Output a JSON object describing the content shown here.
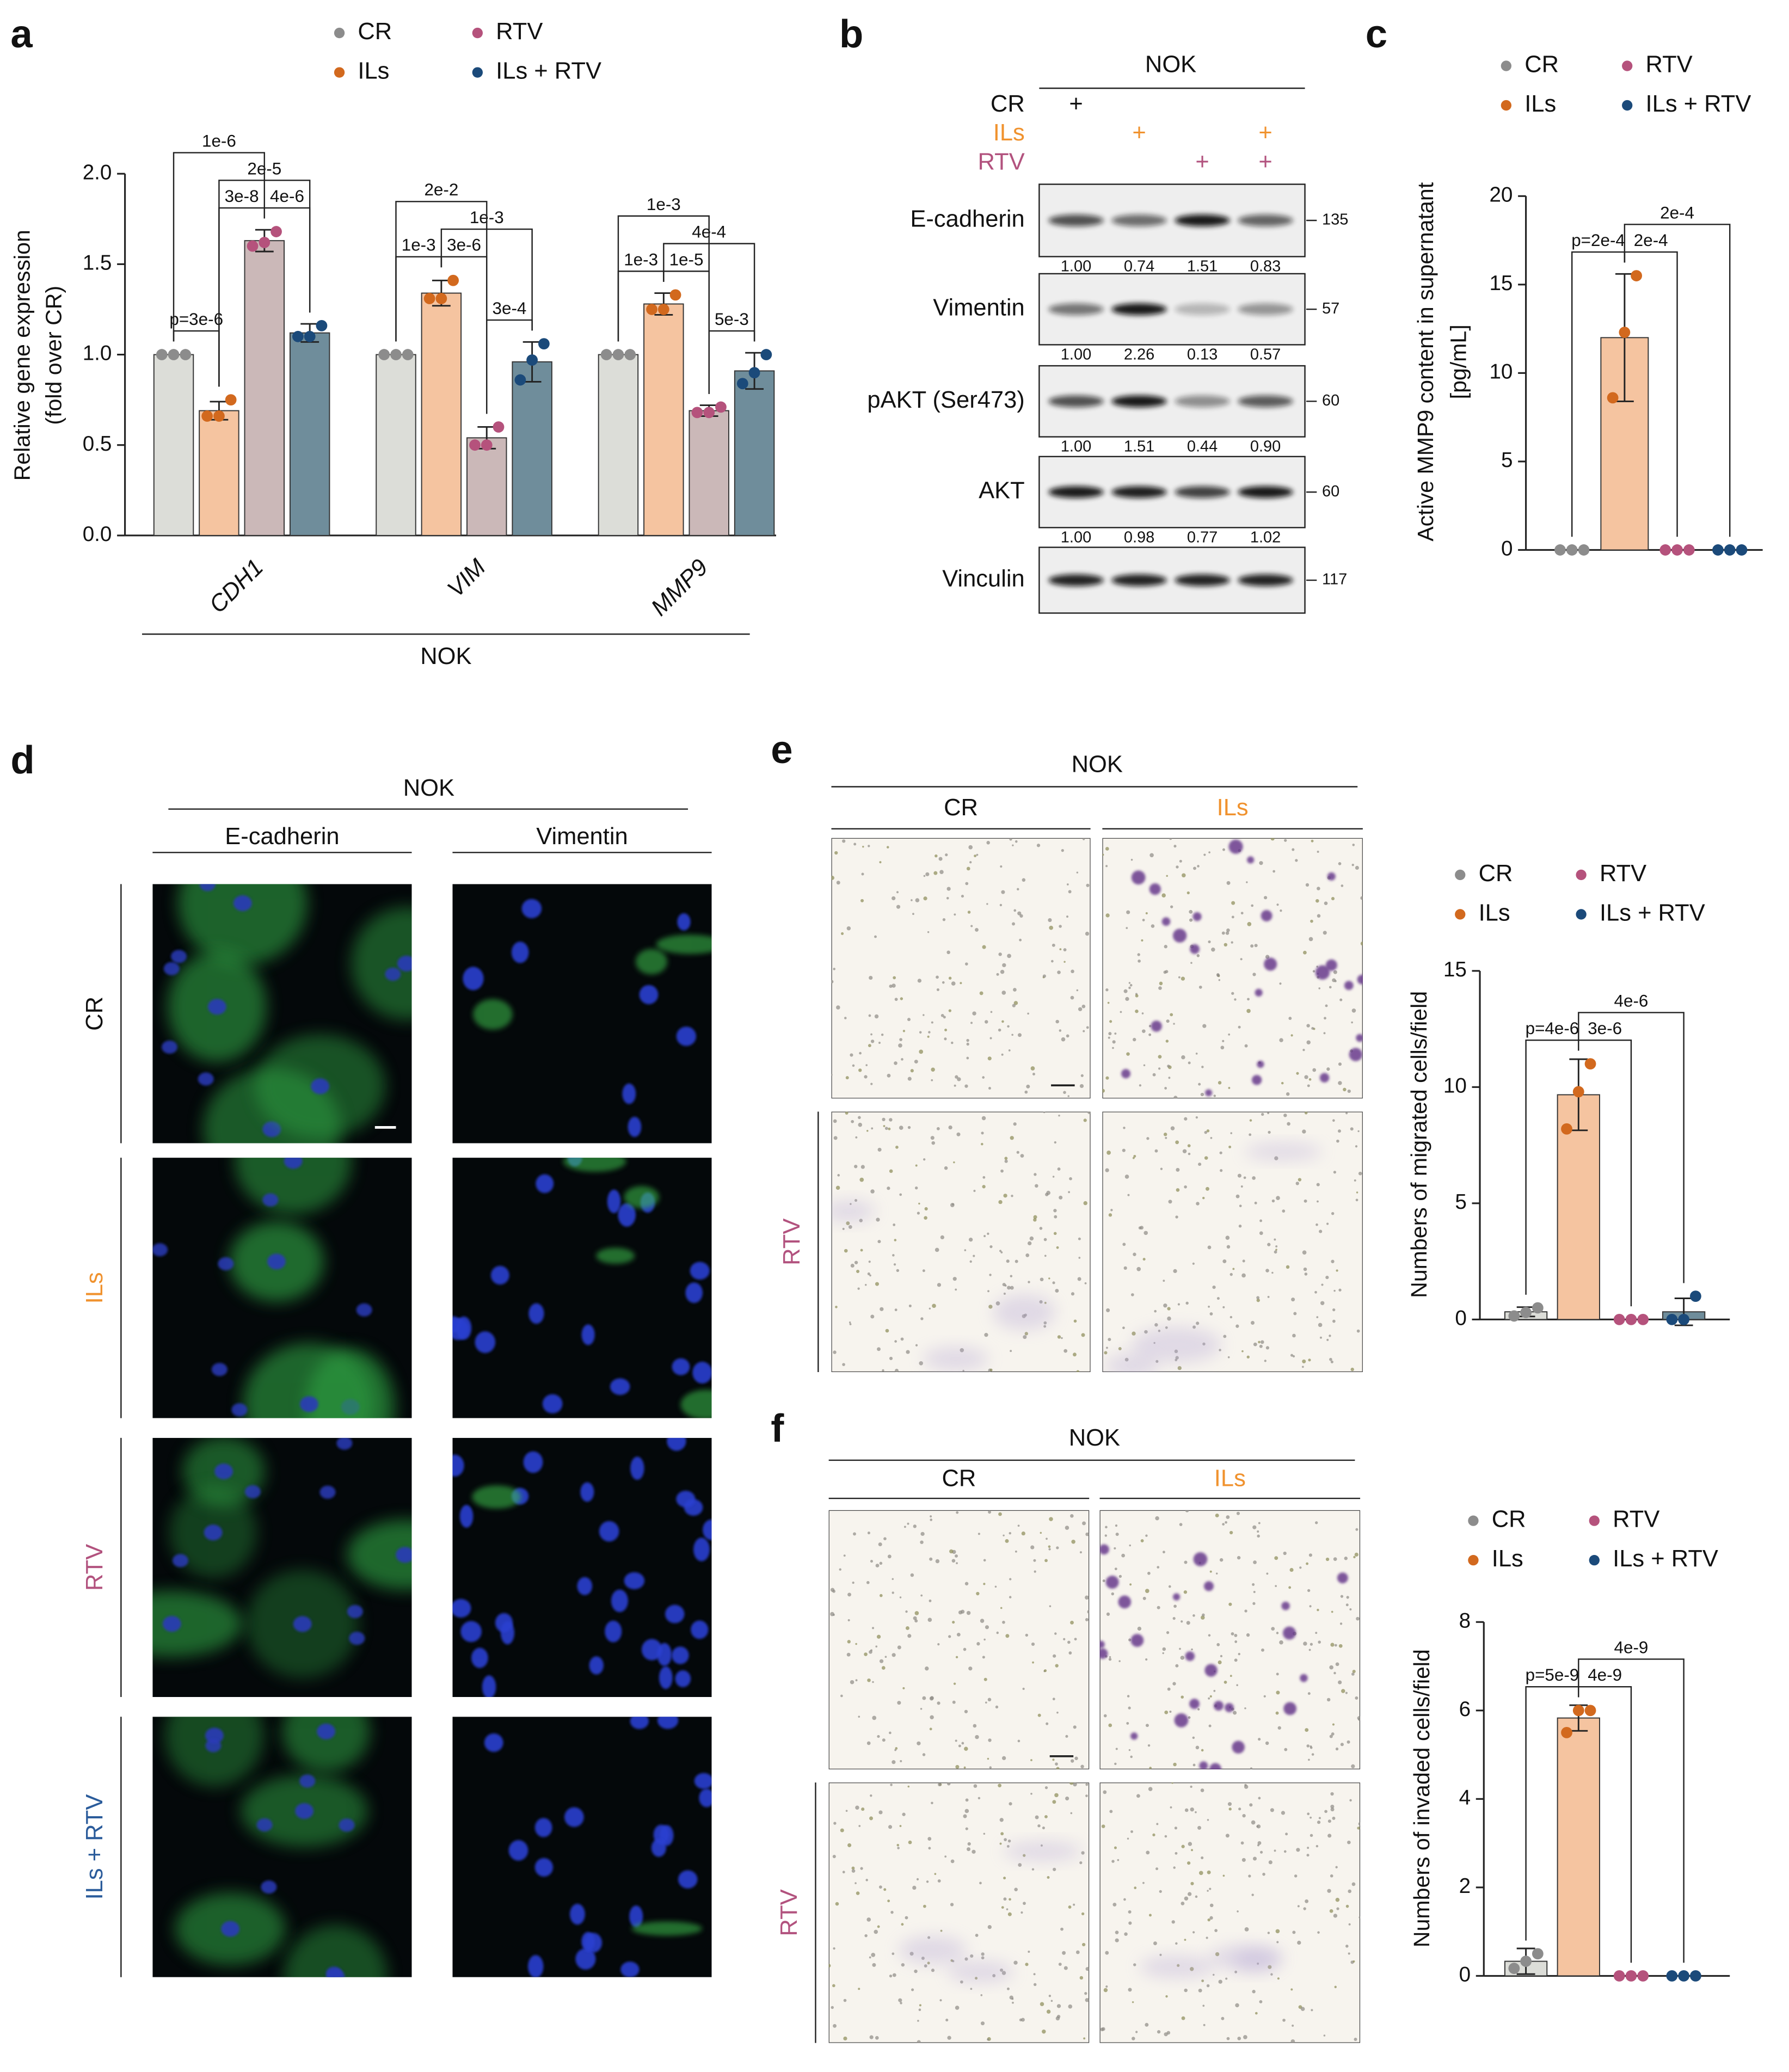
{
  "panel_labels": [
    "a",
    "b",
    "c",
    "d",
    "e",
    "f"
  ],
  "chart_data": [
    {
      "type": "bar",
      "y_label": [
        "Relative gene expression",
        "(fold over CR)"
      ],
      "categories": [
        "CDH1",
        "VIM",
        "MMP9"
      ],
      "group_label": "NOK",
      "ylim": [
        0,
        2
      ],
      "yticks": [
        {
          "value": 0,
          "label": "0.0"
        },
        {
          "value": 0.5,
          "label": "0.5"
        },
        {
          "value": 1,
          "label": "1.0"
        },
        {
          "value": 1.5,
          "label": "1.5"
        },
        {
          "value": 2,
          "label": "2.0"
        }
      ],
      "series": [
        {
          "name": "CR",
          "color": "#dcddd8",
          "point_color": "#8c8c8c",
          "values": [
            1,
            1,
            1
          ],
          "errors": [
            0,
            0,
            0
          ],
          "points": [
            [
              1,
              1,
              1
            ],
            [
              1,
              1,
              1
            ],
            [
              1,
              1,
              1
            ]
          ]
        },
        {
          "name": "ILs",
          "color": "#f5c4a0",
          "point_color": "#d2691e",
          "values": [
            0.69,
            1.34,
            1.28
          ],
          "errors": [
            0.05,
            0.07,
            0.06
          ],
          "points": [
            [
              0.66,
              0.66,
              0.75
            ],
            [
              1.31,
              1.31,
              1.41
            ],
            [
              1.25,
              1.25,
              1.33
            ]
          ]
        },
        {
          "name": "RTV",
          "color": "#cbb8b8",
          "point_color": "#b5527c",
          "values": [
            1.63,
            0.54,
            0.69
          ],
          "errors": [
            0.06,
            0.06,
            0.03
          ],
          "points": [
            [
              1.6,
              1.62,
              1.68
            ],
            [
              0.5,
              0.5,
              0.6
            ],
            [
              0.68,
              0.68,
              0.71
            ]
          ]
        },
        {
          "name": "ILs + RTV",
          "color": "#6f8d9b",
          "point_color": "#1b4a7a",
          "values": [
            1.12,
            0.96,
            0.91
          ],
          "errors": [
            0.05,
            0.11,
            0.1
          ],
          "points": [
            [
              1.1,
              1.1,
              1.16
            ],
            [
              0.86,
              0.97,
              1.06
            ],
            [
              0.84,
              0.9,
              1.0
            ]
          ]
        }
      ],
      "comparisons": [
        [
          {
            "label": "p=3e-6",
            "pair": [
              0,
              1
            ]
          },
          {
            "label": "3e-8",
            "pair": [
              1,
              2
            ]
          },
          {
            "label": "4e-6",
            "pair": [
              2,
              3
            ]
          },
          {
            "label": "2e-5",
            "pair": [
              1,
              3
            ]
          },
          {
            "label": "1e-6",
            "pair": [
              0,
              2
            ]
          }
        ],
        [
          {
            "label": "1e-3",
            "pair": [
              0,
              1
            ]
          },
          {
            "label": "3e-6",
            "pair": [
              1,
              2
            ]
          },
          {
            "label": "3e-4",
            "pair": [
              2,
              3
            ]
          },
          {
            "label": "1e-3",
            "pair": [
              1,
              3
            ]
          },
          {
            "label": "2e-2",
            "pair": [
              0,
              2
            ]
          }
        ],
        [
          {
            "label": "1e-3",
            "pair": [
              0,
              1
            ]
          },
          {
            "label": "1e-5",
            "pair": [
              1,
              2
            ]
          },
          {
            "label": "5e-3",
            "pair": [
              2,
              3
            ]
          },
          {
            "label": "4e-4",
            "pair": [
              1,
              3
            ]
          },
          {
            "label": "1e-3",
            "pair": [
              0,
              2
            ]
          }
        ]
      ]
    },
    {
      "type": "bar",
      "y_label": [
        "Active MMP9 content in supernatant",
        "[pg/mL]"
      ],
      "categories": [
        null
      ],
      "ylim": [
        0,
        20
      ],
      "yticks": [
        0,
        5,
        10,
        15,
        20
      ],
      "series": [
        {
          "name": "CR",
          "color": "#dcddd8",
          "point_color": "#8c8c8c",
          "values": [
            0
          ],
          "errors": [
            0
          ],
          "points": [
            [
              0,
              0,
              0
            ]
          ]
        },
        {
          "name": "ILs",
          "color": "#f5c4a0",
          "point_color": "#d2691e",
          "values": [
            12.0
          ],
          "errors": [
            3.6
          ],
          "points": [
            [
              8.6,
              12.3,
              15.5
            ]
          ]
        },
        {
          "name": "RTV",
          "color": "#cbb8b8",
          "point_color": "#b5527c",
          "values": [
            0
          ],
          "errors": [
            0
          ],
          "points": [
            [
              0,
              0,
              0
            ]
          ]
        },
        {
          "name": "ILs + RTV",
          "color": "#6f8d9b",
          "point_color": "#1b4a7a",
          "values": [
            0
          ],
          "errors": [
            0
          ],
          "points": [
            [
              0,
              0,
              0
            ]
          ]
        }
      ],
      "comparisons": [
        [
          {
            "label": "p=2e-4",
            "pair": [
              0,
              1
            ]
          },
          {
            "label": "2e-4",
            "pair": [
              1,
              2
            ]
          },
          {
            "label": "2e-4",
            "pair": [
              1,
              3
            ]
          }
        ]
      ]
    },
    {
      "type": "bar",
      "y_label": "Numbers of migrated cells/field",
      "categories": [
        null
      ],
      "ylim": [
        0,
        15
      ],
      "yticks": [
        0,
        5,
        10,
        15
      ],
      "series": [
        {
          "name": "CR",
          "color": "#dcddd8",
          "point_color": "#8c8c8c",
          "values": [
            0.33
          ],
          "errors": [
            0.2
          ],
          "points": [
            [
              0.15,
              0.3,
              0.5
            ]
          ]
        },
        {
          "name": "ILs",
          "color": "#f5c4a0",
          "point_color": "#d2691e",
          "values": [
            9.67
          ],
          "errors": [
            1.53
          ],
          "points": [
            [
              8.2,
              9.8,
              11.0
            ]
          ]
        },
        {
          "name": "RTV",
          "color": "#cbb8b8",
          "point_color": "#b5527c",
          "values": [
            0
          ],
          "errors": [
            0
          ],
          "points": [
            [
              0,
              0,
              0
            ]
          ]
        },
        {
          "name": "ILs + RTV",
          "color": "#6f8d9b",
          "point_color": "#1b4a7a",
          "values": [
            0.33
          ],
          "errors": [
            0.58
          ],
          "points": [
            [
              0,
              0,
              1
            ]
          ]
        }
      ],
      "comparisons": [
        [
          {
            "label": "p=4e-6",
            "pair": [
              0,
              1
            ]
          },
          {
            "label": "3e-6",
            "pair": [
              1,
              2
            ]
          },
          {
            "label": "4e-6",
            "pair": [
              1,
              3
            ]
          }
        ]
      ]
    },
    {
      "type": "bar",
      "y_label": "Numbers of invaded cells/field",
      "categories": [
        null
      ],
      "ylim": [
        0,
        8
      ],
      "yticks": [
        0,
        2,
        4,
        6,
        8
      ],
      "series": [
        {
          "name": "CR",
          "color": "#dcddd8",
          "point_color": "#8c8c8c",
          "values": [
            0.33
          ],
          "errors": [
            0.29
          ],
          "points": [
            [
              0.17,
              0.33,
              0.5
            ]
          ]
        },
        {
          "name": "ILs",
          "color": "#f5c4a0",
          "point_color": "#d2691e",
          "values": [
            5.83
          ],
          "errors": [
            0.29
          ],
          "points": [
            [
              5.5,
              6,
              6
            ]
          ]
        },
        {
          "name": "RTV",
          "color": "#cbb8b8",
          "point_color": "#b5527c",
          "values": [
            0
          ],
          "errors": [
            0
          ],
          "points": [
            [
              0,
              0,
              0
            ]
          ]
        },
        {
          "name": "ILs + RTV",
          "color": "#6f8d9b",
          "point_color": "#1b4a7a",
          "values": [
            0
          ],
          "errors": [
            0
          ],
          "points": [
            [
              0,
              0,
              0
            ]
          ]
        }
      ],
      "comparisons": [
        [
          {
            "label": "p=5e-9",
            "pair": [
              0,
              1
            ]
          },
          {
            "label": "4e-9",
            "pair": [
              1,
              2
            ]
          },
          {
            "label": "4e-9",
            "pair": [
              1,
              3
            ]
          }
        ]
      ]
    }
  ],
  "blot": {
    "header": "NOK",
    "treatments": [
      {
        "label": "CR",
        "marks": [
          "+",
          null,
          null,
          null
        ]
      },
      {
        "label": "ILs",
        "marks": [
          null,
          "+",
          null,
          "+"
        ]
      },
      {
        "label": "RTV",
        "marks": [
          null,
          null,
          "+",
          "+"
        ]
      }
    ],
    "proteins": [
      {
        "name": "E-cadherin",
        "mw": 135,
        "quantification": [
          "1.00",
          "0.74",
          "1.51",
          "0.83"
        ]
      },
      {
        "name": "Vimentin",
        "mw": 57,
        "quantification": [
          "1.00",
          "2.26",
          "0.13",
          "0.57"
        ]
      },
      {
        "name": "pAKT (Ser473)",
        "mw": 60,
        "quantification": [
          "1.00",
          "1.51",
          "0.44",
          "0.90"
        ]
      },
      {
        "name": "AKT",
        "mw": 60,
        "quantification": [
          "1.00",
          "0.98",
          "0.77",
          "1.02"
        ]
      },
      {
        "name": "Vinculin",
        "mw": 117
      }
    ]
  },
  "immunofluorescence": {
    "header": "NOK",
    "columns": [
      "E-cadherin",
      "Vimentin"
    ],
    "rows": [
      "CR",
      "ILs",
      "RTV",
      "ILs + RTV"
    ]
  },
  "migration": {
    "header": "NOK",
    "columns": [
      "CR",
      "ILs"
    ],
    "rows": [
      null,
      "RTV"
    ]
  },
  "invasion": {
    "header": "NOK",
    "columns": [
      "CR",
      "ILs"
    ],
    "rows": [
      null,
      "RTV"
    ]
  }
}
